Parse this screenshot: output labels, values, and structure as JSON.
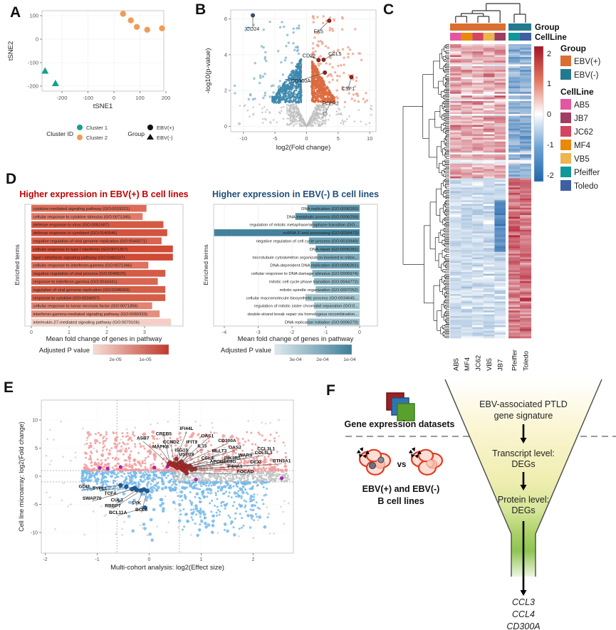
{
  "panelA": {
    "letter": "A",
    "xlabel": "tSNE1",
    "ylabel": "tSNE2",
    "xticks": [
      -200,
      -100,
      0,
      100,
      200
    ],
    "yticks": [
      100,
      0,
      -100,
      -200
    ],
    "legend": {
      "cluster_title": "Cluster ID",
      "cluster_items": [
        {
          "label": "Cluster 1",
          "color": "#17a08c"
        },
        {
          "label": "Cluster 2",
          "color": "#f09b57"
        }
      ],
      "group_title": "Group",
      "group_items": [
        {
          "label": "EBV(+)",
          "shape": "circle"
        },
        {
          "label": "EBV(-)",
          "shape": "triangle"
        }
      ]
    },
    "chart_data": {
      "type": "scatter",
      "xlabel": "tSNE1",
      "ylabel": "tSNE2",
      "xlim": [
        -290,
        215
      ],
      "ylim": [
        -215,
        125
      ],
      "series": [
        {
          "name": "Cluster 2 / EBV(+)",
          "shape": "circle",
          "color": "#f09b57",
          "points": [
            [
              35,
              108
            ],
            [
              65,
              80
            ],
            [
              88,
              52
            ],
            [
              128,
              40
            ],
            [
              185,
              46
            ]
          ]
        },
        {
          "name": "Cluster 1 / EBV(-)",
          "shape": "triangle",
          "color": "#17a08c",
          "points": [
            [
              -265,
              -135
            ],
            [
              -225,
              -188
            ]
          ]
        }
      ]
    }
  },
  "panelB": {
    "letter": "B",
    "xlabel": "log2(Fold change)",
    "ylabel": "-log10(p-value)",
    "xticks": [
      -10,
      -5,
      0,
      5,
      10
    ],
    "yticks": [
      0,
      2,
      4,
      6
    ],
    "colors": {
      "up_dense": "#dd6a3e",
      "up_light": "#eda28b",
      "down_dense": "#3d87ad",
      "down_light": "#86b6cd",
      "ns": "#bdbdbd",
      "label_up": "#a31e1e",
      "label_down": "#19607d",
      "label_ns": "#9a9a9a"
    },
    "chart_data": {
      "type": "scatter",
      "description": "volcano plot of differential expression",
      "xlim": [
        -12,
        11
      ],
      "ylim": [
        -0.3,
        6.5
      ],
      "labeled_genes": [
        {
          "name": "CD24",
          "x": -8.5,
          "y": 6.2,
          "lx": -8.5,
          "ly": 5.35,
          "cls": "down"
        },
        {
          "name": "FAS",
          "x": 3.6,
          "y": 5.9,
          "lx": 1.9,
          "ly": 5.2,
          "cls": "up"
        },
        {
          "name": "CD22",
          "x": 1.9,
          "y": 3.7,
          "lx": 0.4,
          "ly": 3.85,
          "cls": "up"
        },
        {
          "name": "CCL5",
          "x": 2.7,
          "y": 3.72,
          "lx": 4.5,
          "ly": 3.95,
          "cls": "up"
        },
        {
          "name": "CD300A",
          "x": 2.9,
          "y": 3.0,
          "lx": -0.9,
          "ly": 2.45,
          "cls": "up"
        },
        {
          "name": "CSF1",
          "x": 7.1,
          "y": 2.75,
          "lx": 6.6,
          "ly": 2.0,
          "cls": "up"
        },
        {
          "name": "FCER2",
          "x": 2.95,
          "y": 0.7,
          "lx": 3.8,
          "ly": 1.2,
          "cls": "ns"
        }
      ]
    }
  },
  "panelC": {
    "letter": "C",
    "annotation_labels": [
      "Group",
      "CellLine"
    ],
    "columns": [
      "AB5",
      "MF4",
      "JC62",
      "VB5",
      "JB7",
      "Pfeiffer",
      "Toledo"
    ],
    "column_colors": [
      "#e5569f",
      "#e8890c",
      "#d44560",
      "#ecb54f",
      "#a13d62",
      "#0f9898",
      "#3f5fa5"
    ],
    "column_groups": [
      "EBV(+)",
      "EBV(+)",
      "EBV(+)",
      "EBV(+)",
      "EBV(+)",
      "EBV(-)",
      "EBV(-)"
    ],
    "group_colors": {
      "pos": "#d96f32",
      "neg": "#23798f"
    },
    "colorbar_ticks": [
      "2",
      "1",
      "0",
      "-1",
      "-2"
    ],
    "legend": {
      "group_title": "Group",
      "group_items": [
        {
          "label": "EBV(+)",
          "color": "#d96f32"
        },
        {
          "label": "EBV(-)",
          "color": "#23798f"
        }
      ],
      "cellline_title": "CellLine",
      "cellline_items": [
        {
          "label": "AB5",
          "color": "#e5569f"
        },
        {
          "label": "JB7",
          "color": "#a13d62"
        },
        {
          "label": "JC62",
          "color": "#d44560"
        },
        {
          "label": "MF4",
          "color": "#e8890c"
        },
        {
          "label": "VB5",
          "color": "#ecb54f"
        },
        {
          "label": "Pfeiffer",
          "color": "#0f9898"
        },
        {
          "label": "Toledo",
          "color": "#3f5fa5"
        }
      ]
    },
    "chart_data": {
      "type": "heatmap",
      "value_range": [
        -2,
        2
      ],
      "pattern": "rows clustered into two blocks: top block high (red) in EBV(+) lines and low (blue) in EBV(-); bottom block low in EBV(+) and high in EBV(-)"
    }
  },
  "panelD": {
    "letter": "D",
    "left": {
      "title": "Higher expression in EBV(+) B cell lines",
      "title_color": "#c00000",
      "ylabel": "Enriched terms",
      "xlabel": "Mean fold change of genes in pathway",
      "xticks": [
        0,
        1,
        2,
        3
      ],
      "legend_label": "Adjusted P value",
      "legend_ticks": [
        "2e-05",
        "1e-05"
      ],
      "chart_data": {
        "type": "bar",
        "categories": [
          "cytokine-mediated signaling pathway (GO:0019221)",
          "cellular response to cytokine stimulus (GO:0071345)",
          "defense response to virus (GO:0051607)",
          "defense response to symbiont (GO:0140546)",
          "negative regulation of viral genome replication (GO:0045071)",
          "cellular response to type I interferon (GO:0071357)",
          "type I interferon signaling pathway (GO:0060337)",
          "cellular response to interferon-gamma (GO:0071346)",
          "negative regulation of viral process (GO:0048525)",
          "response to interferon-gamma (GO:0034341)",
          "regulation of viral genome replication (GO:0045069)",
          "response to cytokine (GO:0034097)",
          "cellular response to tumor necrosis factor (GO:0071356)",
          "interferon-gamma-mediated signaling pathway (GO:0060333)",
          "interleukin-27-mediated signaling pathway (GO:0070106)"
        ],
        "values": [
          3.05,
          2.95,
          3.5,
          3.6,
          3.45,
          3.75,
          3.75,
          3.1,
          3.55,
          3.35,
          3.55,
          3.55,
          3.2,
          3.4,
          3.7
        ],
        "bar_colors": [
          "#dd6b57",
          "#e07a66",
          "#d45a44",
          "#d25340",
          "#d86350",
          "#cf4b36",
          "#cf4b36",
          "#de7260",
          "#d45c46",
          "#da6652",
          "#d55e48",
          "#d55e48",
          "#e28370",
          "#e48f7c",
          "#f5cfc5"
        ],
        "xlim": [
          0,
          4
        ]
      }
    },
    "right": {
      "title": "Higher expression in EBV(-) B cell lines",
      "title_color": "#1f4e79",
      "ylabel": "Enriched terms",
      "xlabel": "Mean fold change of genes in pathway",
      "xticks": [
        -4,
        -3,
        -2,
        -1,
        0
      ],
      "legend_label": "Adjusted P value",
      "legend_ticks": [
        "3e-04",
        "2e-04",
        "1e-04"
      ],
      "chart_data": {
        "type": "bar",
        "categories": [
          "DNA replication (GO:0006260)",
          "DNA metabolic process (GO:0006259)",
          "regulation of mitotic metaphase/anaphase transition (GO...",
          "snRNA 3'-end processing (GO:0034472)",
          "negative regulation of cell cycle process (GO:0010948)",
          "DNA repair (GO:0006281)",
          "microtubule cytoskeleton organization involved in mitos...",
          "DNA-dependent DNA replication (GO:0006261)",
          "cellular response to DNA damage stimulus (GO:0006974)",
          "mitotic cell cycle phase transition (GO:0044772)",
          "mitotic spindle organization (GO:0007052)",
          "cellular macromolecule biosynthetic process (GO:0034645...",
          "regulation of mitotic sister chromatid separation (GO:0...",
          "double-strand break repair via homologous recombination...",
          "DNA replication initiation (GO:0006270)"
        ],
        "values": [
          -1.55,
          -1.9,
          -1.4,
          -4.3,
          -1.5,
          -1.3,
          -1.25,
          -1.45,
          -1.4,
          -1.35,
          -1.3,
          -1.6,
          -1.35,
          -1.3,
          -1.55
        ],
        "bar_colors": [
          "#5f97ab",
          "#5a92a7",
          "#6fa3b5",
          "#44829c",
          "#6fa3b5",
          "#578fa5",
          "#7badbd",
          "#6fa3b5",
          "#85b3c2",
          "#8fbac7",
          "#8fbac7",
          "#a5c8d2",
          "#a5c8d2",
          "#b2d0d9",
          "#9fc2cd"
        ],
        "xlim": [
          -4.5,
          0
        ]
      }
    }
  },
  "panelE": {
    "letter": "E",
    "xlabel": "Multi-cohort analysis: log2(Effect size)",
    "ylabel": "Cell line microarray: log2(Fold change)",
    "xticks": [
      -2,
      -1,
      0,
      1,
      2
    ],
    "yticks": [
      10,
      5,
      0,
      -5,
      -10
    ],
    "colors": {
      "up": "#f59a9a",
      "down": "#74b9ea",
      "ns": "#c2c2c2",
      "label_up": "#b22626",
      "label_down": "#1d5d9e",
      "purple": "#ad23a5"
    },
    "chart_data": {
      "type": "scatter",
      "description": "concordance of cell-line fold change vs multi-cohort effect size",
      "guides": {
        "vlines": [
          -0.62,
          0.58
        ],
        "hlines": [
          1,
          -1
        ]
      },
      "purple_points": [
        [
          -0.95,
          1.5
        ],
        [
          -0.8,
          1.35
        ],
        [
          -0.55,
          1.65
        ],
        [
          0.1,
          1.55
        ],
        [
          0.35,
          1.7
        ],
        [
          0.9,
          -0.6
        ],
        [
          2.55,
          -0.35
        ]
      ],
      "genes_up": [
        [
          "IFI44L",
          0.52,
          3.05,
          0.72,
          8.2
        ],
        [
          "CREB5",
          0.4,
          2.45,
          0.28,
          7.3
        ],
        [
          "OAS1",
          0.62,
          2.6,
          1.12,
          6.9
        ],
        [
          "ASB7",
          0.38,
          2.15,
          -0.12,
          6.5
        ],
        [
          "CCND2",
          0.48,
          2.3,
          0.42,
          5.85
        ],
        [
          "IFIT3",
          0.56,
          2.3,
          0.82,
          5.85
        ],
        [
          "CD300A",
          0.64,
          2.25,
          1.5,
          6.05
        ],
        [
          "MAPK8",
          0.44,
          2.0,
          0.22,
          5.0
        ],
        [
          "IL15",
          0.58,
          2.0,
          1.02,
          5.1
        ],
        [
          "OAS2",
          0.7,
          1.95,
          1.65,
          4.85
        ],
        [
          "CCL3L1",
          0.78,
          1.85,
          2.25,
          4.6
        ],
        [
          "ISG15",
          0.5,
          1.75,
          0.62,
          4.35
        ],
        [
          "MLLT3",
          0.66,
          1.7,
          1.35,
          4.25
        ],
        [
          "CCL3L3",
          0.8,
          1.6,
          2.2,
          3.95
        ],
        [
          "USP18",
          0.54,
          1.5,
          0.72,
          3.6
        ],
        [
          "WARS",
          0.74,
          1.45,
          1.85,
          3.45
        ],
        [
          "CCL4",
          0.62,
          1.35,
          1.12,
          2.95
        ],
        [
          "PIK3R5",
          0.7,
          1.3,
          1.6,
          2.95
        ],
        [
          "APOBEC3G",
          0.64,
          1.2,
          1.42,
          2.35
        ],
        [
          "DEXI",
          0.82,
          1.15,
          2.05,
          2.3
        ],
        [
          "BTN3A1",
          0.88,
          1.3,
          2.55,
          2.45
        ],
        [
          "P4HA1",
          0.68,
          0.95,
          1.65,
          1.55
        ],
        [
          "FOCAD",
          0.72,
          0.55,
          1.85,
          0.6
        ]
      ],
      "genes_down": [
        [
          "GDI2",
          -0.55,
          -1.6,
          -1.25,
          -2.1
        ],
        [
          "SYPL1",
          -0.44,
          -1.85,
          -0.95,
          -2.4
        ],
        [
          "TCF4",
          -0.28,
          -2.1,
          -0.75,
          -3.3
        ],
        [
          "SWAP70",
          -0.33,
          -2.3,
          -1.1,
          -4.2
        ],
        [
          "CUL3",
          -0.24,
          -2.45,
          -0.62,
          -4.5
        ],
        [
          "RBBP7",
          -0.16,
          -2.55,
          -0.7,
          -5.5
        ],
        [
          "SYK",
          -0.1,
          -2.35,
          -0.25,
          -5.0
        ],
        [
          "BCL11A",
          -0.08,
          -5.6,
          -0.6,
          -6.7
        ],
        [
          "BCL6",
          -0.04,
          -2.65,
          -0.15,
          -6.2
        ]
      ]
    }
  },
  "panelF": {
    "letter": "F",
    "datasets_label": "Gene expression datasets",
    "vs_label": "vs",
    "cells_caption1": "EBV(+) and EBV(-)",
    "cells_caption2": "B cell lines",
    "funnel_steps": [
      "EBV-associated PTLD",
      "gene signature",
      "Transcript level:",
      "DEGs",
      "Protein level:",
      "DEGs"
    ],
    "result_genes": [
      "CCL3",
      "CCL4",
      "CD300A"
    ],
    "icon_colors": {
      "square1": "#9c2121",
      "square2": "#2e74b5",
      "square3": "#5aa02c",
      "cell_stroke": "#e23b22"
    }
  }
}
